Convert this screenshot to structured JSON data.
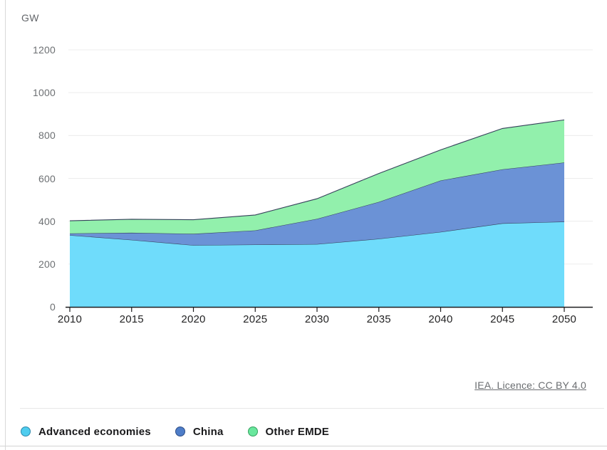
{
  "unit_label": "GW",
  "footer": {
    "licence_text": "IEA. Licence: CC BY 4.0"
  },
  "chart_data": {
    "type": "area",
    "stacked": true,
    "unit": "GW",
    "xlabel": "",
    "ylabel": "GW",
    "x": [
      2010,
      2015,
      2020,
      2025,
      2030,
      2035,
      2040,
      2045,
      2050
    ],
    "x_tick_labels": [
      "2010",
      "2015",
      "2020",
      "2025",
      "2030",
      "2035",
      "2040",
      "2045",
      "2050"
    ],
    "yticks": [
      0,
      200,
      400,
      600,
      800,
      1000,
      1200
    ],
    "ylim": [
      0,
      1200
    ],
    "grid": "horizontal",
    "legend_position": "bottom",
    "boundary_line_color": "#36415a",
    "axis_color": "#1c1c1e",
    "gridline_color": "#ececec",
    "series": [
      {
        "name": "Advanced economies",
        "values": [
          335,
          313,
          288,
          291,
          293,
          318,
          350,
          390,
          398
        ],
        "color": "#6FDCFB",
        "marker_fill": "#4FCDEF",
        "marker_border": "#2D89AC"
      },
      {
        "name": "China",
        "values": [
          8,
          33,
          53,
          66,
          118,
          172,
          240,
          252,
          276
        ],
        "color": "#6B92D6",
        "marker_fill": "#4E7DC8",
        "marker_border": "#2F4E87"
      },
      {
        "name": "Other EMDE",
        "values": [
          59,
          63,
          66,
          72,
          94,
          133,
          143,
          191,
          199
        ],
        "color": "#92F0AC",
        "marker_fill": "#69E79D",
        "marker_border": "#35A05F"
      }
    ],
    "stacked_totals": [
      402,
      409,
      407,
      429,
      505,
      623,
      733,
      833,
      873
    ]
  }
}
